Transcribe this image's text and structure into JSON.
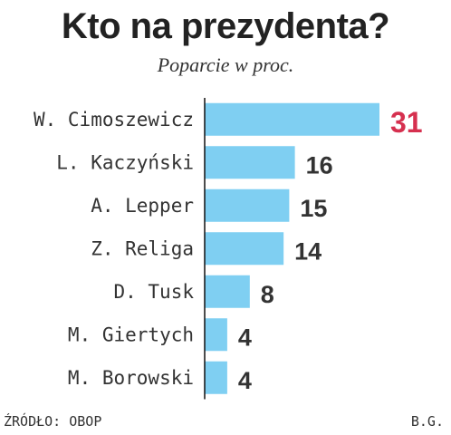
{
  "chart_data": {
    "type": "bar",
    "orientation": "horizontal",
    "title": "Kto na prezydenta?",
    "subtitle": "Poparcie w proc.",
    "categories": [
      "W. Cimoszewicz",
      "L. Kaczyński",
      "A. Lepper",
      "Z. Religa",
      "D. Tusk",
      "M. Giertych",
      "M. Borowski"
    ],
    "values": [
      31,
      16,
      15,
      14,
      8,
      4,
      4
    ],
    "value_labels": [
      "31",
      "16",
      "15",
      "14",
      "8",
      "4",
      "4"
    ],
    "highlight_index": 0,
    "xlim": [
      0,
      31
    ],
    "grid": false,
    "legend": "none"
  },
  "colors": {
    "bar": "#7fcff2",
    "axis": "#111111",
    "label": "#333333",
    "highlight_label": "#d6304f"
  },
  "footer": {
    "source": "ŹRÓDŁO: OBOP",
    "author": "B.G."
  }
}
